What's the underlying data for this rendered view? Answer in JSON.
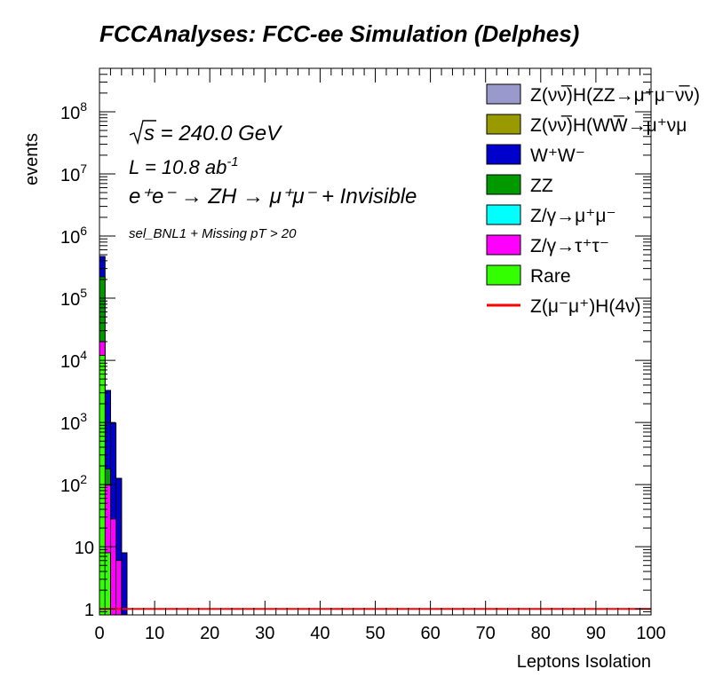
{
  "chart_data": {
    "type": "bar",
    "stacked": true,
    "title": "FCCAnalyses: FCC-ee Simulation (Delphes)",
    "xlabel": "Leptons Isolation",
    "ylabel": "events",
    "xlim": [
      0,
      100
    ],
    "ylim": [
      0.8,
      500000000
    ],
    "yscale": "log",
    "grid": false,
    "legend_position": "top-right",
    "x_ticks": [
      "0",
      "10",
      "20",
      "30",
      "40",
      "50",
      "60",
      "70",
      "80",
      "90",
      "100"
    ],
    "y_ticks": [
      {
        "base": "1",
        "exp": ""
      },
      {
        "base": "10",
        "exp": ""
      },
      {
        "base": "10",
        "exp": "2"
      },
      {
        "base": "10",
        "exp": "3"
      },
      {
        "base": "10",
        "exp": "4"
      },
      {
        "base": "10",
        "exp": "5"
      },
      {
        "base": "10",
        "exp": "6"
      },
      {
        "base": "10",
        "exp": "7"
      },
      {
        "base": "10",
        "exp": "8"
      }
    ],
    "bin_edges": [
      0,
      1,
      2,
      3,
      4,
      5
    ],
    "annotations": {
      "sqrt_s": "s = 240.0 GeV",
      "lumi_main": "L = 10.8 ab",
      "lumi_exp": "-1",
      "process": "e⁺e⁻ → ZH → μ⁺μ⁻ + Invisible",
      "selection": "sel_BNL1 + Missing pT > 20"
    },
    "series": [
      {
        "name": "Z(νν̅)H(ZZ→μ⁺μ⁻ν̅ν)",
        "color": "#9999cc",
        "values": [
          0,
          0,
          0,
          0,
          0
        ]
      },
      {
        "name": "Z(νν̅)H(WW̅→μ⁺νμ",
        "color": "#999900",
        "values": [
          0,
          0,
          0,
          0,
          0
        ]
      },
      {
        "name": "W⁺W⁻",
        "color": "#0000cc",
        "values": [
          250000,
          3100,
          950,
          120,
          8
        ]
      },
      {
        "name": "ZZ",
        "color": "#009900",
        "values": [
          200000,
          80,
          0,
          0,
          0
        ]
      },
      {
        "name": "Z/γ→μ⁺μ⁻",
        "color": "#00ffff",
        "values": [
          0,
          0,
          0,
          0,
          0
        ]
      },
      {
        "name": "Z/γ→τ⁺τ⁻",
        "color": "#ff00ff",
        "values": [
          8000,
          90,
          28,
          6,
          0
        ]
      },
      {
        "name": "Rare",
        "color": "#33ff00",
        "values": [
          12000,
          8,
          0,
          0,
          0
        ]
      }
    ],
    "signal": {
      "name": "Z(μ⁻μ⁺)H(4ν)",
      "color": "#ff0000",
      "value": 1.0
    }
  }
}
